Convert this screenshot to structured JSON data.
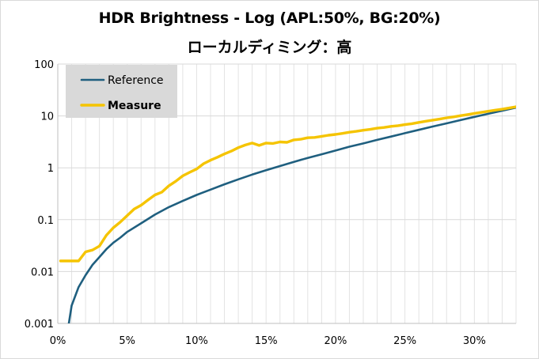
{
  "chart_data": {
    "type": "line",
    "title": "HDR Brightness - Log (APL:50%, BG:20%)",
    "subtitle": "ローカルディミング：高",
    "xlabel": "",
    "ylabel": "",
    "x_scale": "linear",
    "y_scale": "log",
    "xlim": [
      0,
      33
    ],
    "ylim": [
      0.001,
      100
    ],
    "x_ticks": [
      "0%",
      "5%",
      "10%",
      "15%",
      "20%",
      "25%",
      "30%"
    ],
    "x_tick_values": [
      0,
      5,
      10,
      15,
      20,
      25,
      30
    ],
    "y_ticks": [
      "0.001",
      "0.01",
      "0.1",
      "1",
      "10",
      "100"
    ],
    "y_tick_values": [
      0.001,
      0.01,
      0.1,
      1,
      10,
      100
    ],
    "grid": {
      "vertical": true,
      "horizontal": true
    },
    "legend_position": "top-left",
    "series": [
      {
        "name": "Reference",
        "color": "#1f5f7f",
        "bold": false,
        "x": [
          0.8,
          1.0,
          1.5,
          2.0,
          2.5,
          3.0,
          3.5,
          4.0,
          4.5,
          5.0,
          6.0,
          7.0,
          8.0,
          9.0,
          10.0,
          11.0,
          12.0,
          13.0,
          14.0,
          15.0,
          16.0,
          17.0,
          18.0,
          19.0,
          20.0,
          21.0,
          22.0,
          23.0,
          24.0,
          25.0,
          26.0,
          27.0,
          28.0,
          29.0,
          30.0,
          31.0,
          32.0,
          33.0
        ],
        "y": [
          0.001,
          0.0022,
          0.005,
          0.0085,
          0.0135,
          0.019,
          0.027,
          0.036,
          0.045,
          0.058,
          0.085,
          0.125,
          0.175,
          0.23,
          0.3,
          0.38,
          0.48,
          0.6,
          0.74,
          0.9,
          1.08,
          1.3,
          1.55,
          1.82,
          2.15,
          2.55,
          2.95,
          3.45,
          4.0,
          4.65,
          5.4,
          6.25,
          7.2,
          8.3,
          9.6,
          11.0,
          12.6,
          14.5
        ]
      },
      {
        "name": "Measure",
        "color": "#f5c400",
        "bold": true,
        "x": [
          0.2,
          0.5,
          1.0,
          1.5,
          2.0,
          2.5,
          3.0,
          3.5,
          4.0,
          4.5,
          5.0,
          5.5,
          6.0,
          6.5,
          7.0,
          7.5,
          8.0,
          8.5,
          9.0,
          9.5,
          10.0,
          10.5,
          11.0,
          11.5,
          12.0,
          12.5,
          13.0,
          13.5,
          14.0,
          14.5,
          15.0,
          15.5,
          16.0,
          16.5,
          17.0,
          17.5,
          18.0,
          18.5,
          19.0,
          19.5,
          20.0,
          20.5,
          21.0,
          21.5,
          22.0,
          22.5,
          23.0,
          23.5,
          24.0,
          24.5,
          25.0,
          25.5,
          26.0,
          26.5,
          27.0,
          27.5,
          28.0,
          28.5,
          29.0,
          29.5,
          30.0,
          30.5,
          31.0,
          31.5,
          32.0,
          32.5,
          33.0
        ],
        "y": [
          0.016,
          0.016,
          0.016,
          0.016,
          0.024,
          0.026,
          0.031,
          0.05,
          0.07,
          0.09,
          0.12,
          0.16,
          0.19,
          0.24,
          0.3,
          0.34,
          0.45,
          0.55,
          0.7,
          0.82,
          0.95,
          1.2,
          1.4,
          1.6,
          1.85,
          2.1,
          2.45,
          2.75,
          3.0,
          2.7,
          3.0,
          2.95,
          3.15,
          3.1,
          3.45,
          3.55,
          3.8,
          3.85,
          4.05,
          4.25,
          4.4,
          4.6,
          4.85,
          5.05,
          5.3,
          5.5,
          5.8,
          6.0,
          6.3,
          6.5,
          6.8,
          7.1,
          7.5,
          7.9,
          8.3,
          8.7,
          9.2,
          9.6,
          10.1,
          10.6,
          11.2,
          11.7,
          12.3,
          12.9,
          13.5,
          14.2,
          15.0
        ]
      }
    ]
  }
}
